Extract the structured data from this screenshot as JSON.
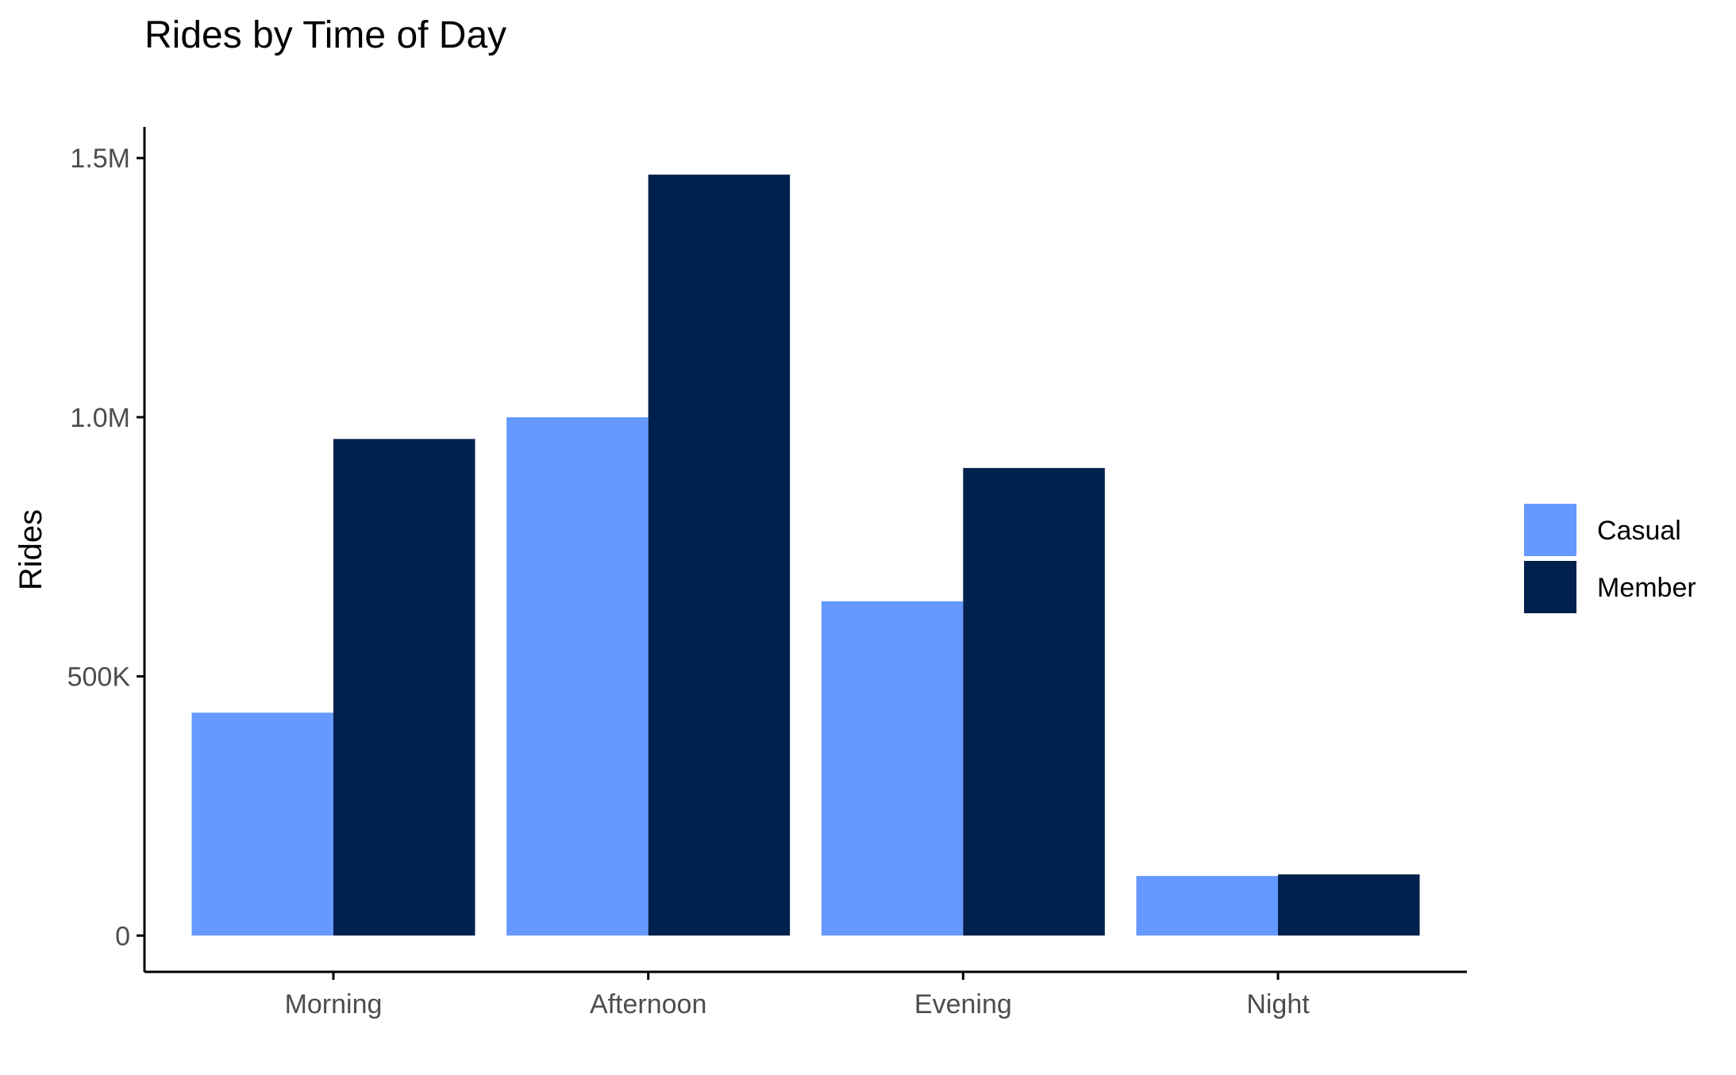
{
  "colors": {
    "casual": "#6699ff",
    "member": "#00214d",
    "axis": "#000000",
    "tick_text": "#4d4d4d",
    "background": "#ffffff"
  },
  "chart_data": {
    "type": "bar",
    "title": "Rides by Time of Day",
    "xlabel": "",
    "ylabel": "Rides",
    "categories": [
      "Morning",
      "Afternoon",
      "Evening",
      "Night"
    ],
    "series": [
      {
        "name": "Casual",
        "color": "#6699ff",
        "values": [
          430000,
          1000000,
          645000,
          115000
        ]
      },
      {
        "name": "Member",
        "color": "#00214d",
        "values": [
          958000,
          1468000,
          902000,
          118000
        ]
      }
    ],
    "ylim": [
      -70000,
      1560000
    ],
    "yticks": [
      0,
      500000,
      1000000,
      1500000
    ],
    "ytick_labels": [
      "0",
      "500K",
      "1.0M",
      "1.5M"
    ],
    "grid": false,
    "legend": {
      "position": "right",
      "title": ""
    }
  }
}
